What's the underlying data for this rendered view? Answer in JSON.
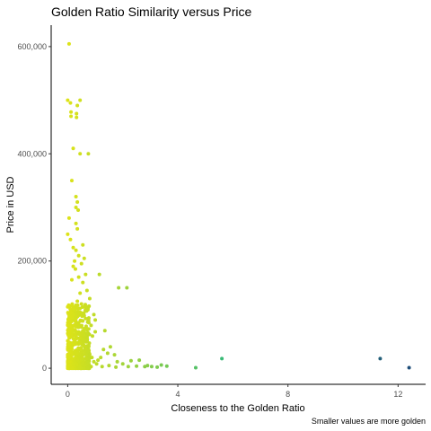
{
  "chart_data": {
    "type": "scatter",
    "title": "Golden Ratio Similarity versus Price",
    "xlabel": "Closeness to the Golden Ratio",
    "ylabel": "Price in USD",
    "caption": "Smaller values are more golden",
    "xlim": [
      -0.6,
      13.0
    ],
    "ylim": [
      -30000,
      640000
    ],
    "x_ticks": [
      {
        "value": 0,
        "label": "0"
      },
      {
        "value": 4,
        "label": "4"
      },
      {
        "value": 8,
        "label": "8"
      },
      {
        "value": 12,
        "label": "12"
      }
    ],
    "y_ticks": [
      {
        "value": 0,
        "label": "0"
      },
      {
        "value": 200000,
        "label": "200,000"
      },
      {
        "value": 400000,
        "label": "400,000"
      },
      {
        "value": 600000,
        "label": "600,000"
      }
    ],
    "grid": false,
    "legend": "none",
    "color_scale": {
      "low": "#dde318",
      "mid": "#3aba76",
      "high": "#1f4e79",
      "note": "color by x value"
    },
    "points": [
      [
        0.05,
        605000
      ],
      [
        0.0,
        500000
      ],
      [
        0.1,
        495000
      ],
      [
        0.45,
        500000
      ],
      [
        0.35,
        490000
      ],
      [
        0.12,
        478000
      ],
      [
        0.32,
        475000
      ],
      [
        0.12,
        470000
      ],
      [
        0.32,
        468000
      ],
      [
        0.2,
        410000
      ],
      [
        0.45,
        400000
      ],
      [
        0.75,
        400000
      ],
      [
        0.15,
        350000
      ],
      [
        0.3,
        320000
      ],
      [
        0.35,
        310000
      ],
      [
        0.3,
        300000
      ],
      [
        0.38,
        295000
      ],
      [
        0.05,
        280000
      ],
      [
        0.3,
        270000
      ],
      [
        0.35,
        260000
      ],
      [
        0.0,
        250000
      ],
      [
        0.1,
        240000
      ],
      [
        0.55,
        230000
      ],
      [
        0.2,
        225000
      ],
      [
        0.3,
        220000
      ],
      [
        0.4,
        210000
      ],
      [
        0.6,
        205000
      ],
      [
        0.25,
        200000
      ],
      [
        0.5,
        195000
      ],
      [
        0.2,
        190000
      ],
      [
        0.65,
        175000
      ],
      [
        1.15,
        175000
      ],
      [
        0.4,
        170000
      ],
      [
        0.55,
        160000
      ],
      [
        1.85,
        150000
      ],
      [
        2.15,
        150000
      ],
      [
        0.7,
        145000
      ],
      [
        0.8,
        130000
      ],
      [
        0.35,
        125000
      ],
      [
        0.75,
        115000
      ],
      [
        0.95,
        100000
      ],
      [
        0.6,
        98000
      ],
      [
        1.0,
        90000
      ],
      [
        0.85,
        80000
      ],
      [
        1.35,
        70000
      ],
      [
        1.0,
        68000
      ],
      [
        0.9,
        60000
      ],
      [
        1.55,
        40000
      ],
      [
        1.3,
        35000
      ],
      [
        1.45,
        28000
      ],
      [
        1.7,
        25000
      ],
      [
        1.2,
        20000
      ],
      [
        1.1,
        15000
      ],
      [
        1.8,
        12000
      ],
      [
        2.3,
        14000
      ],
      [
        2.6,
        15000
      ],
      [
        2.0,
        8000
      ],
      [
        3.4,
        6000
      ],
      [
        1.5,
        5000
      ],
      [
        2.5,
        4000
      ],
      [
        2.8,
        3000
      ],
      [
        3.05,
        3000
      ],
      [
        3.25,
        2000
      ],
      [
        3.6,
        4000
      ],
      [
        4.65,
        1000
      ],
      [
        5.6,
        18000
      ],
      [
        11.35,
        18000
      ],
      [
        12.4,
        1000
      ],
      [
        2.2,
        3000
      ],
      [
        1.75,
        2000
      ],
      [
        2.9,
        5000
      ],
      [
        0.5,
        52000
      ],
      [
        0.45,
        47000
      ],
      [
        0.55,
        55000
      ],
      [
        0.6,
        42000
      ],
      [
        0.65,
        35000
      ],
      [
        0.72,
        30000
      ],
      [
        0.8,
        26000
      ],
      [
        0.88,
        20000
      ],
      [
        0.95,
        12000
      ],
      [
        1.05,
        8000
      ],
      [
        0.25,
        63000
      ],
      [
        0.4,
        85000
      ],
      [
        0.2,
        110000
      ],
      [
        0.45,
        140000
      ],
      [
        0.15,
        165000
      ],
      [
        0.28,
        185000
      ],
      [
        0.5,
        120000
      ],
      [
        0.1,
        95000
      ],
      [
        0.05,
        45000
      ],
      [
        0.15,
        25000
      ],
      [
        0.35,
        15000
      ],
      [
        0.6,
        5000
      ],
      [
        0.85,
        3000
      ],
      [
        1.25,
        3000
      ],
      [
        0.7,
        72000
      ]
    ],
    "dense_cluster": {
      "x_range": [
        0.0,
        0.8
      ],
      "y_range": [
        0,
        120000
      ],
      "approx_count": 600,
      "note": "dense overlapping region of points near the origin"
    }
  }
}
